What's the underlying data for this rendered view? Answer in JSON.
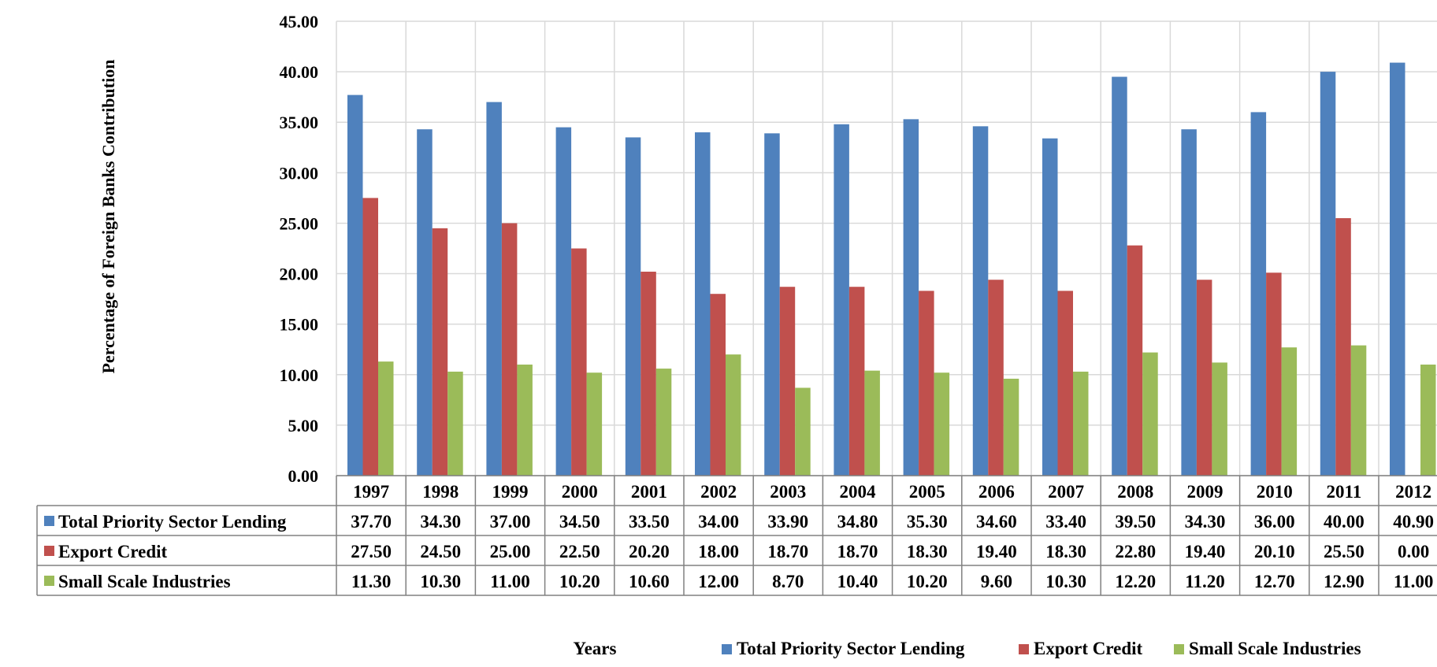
{
  "chart_data": {
    "type": "bar",
    "title": "",
    "ylabel": "Percentage of Foreign Banks Contribution",
    "xlabel": "Years",
    "ylim": [
      0,
      45
    ],
    "yticks": [
      "0.00",
      "5.00",
      "10.00",
      "15.00",
      "20.00",
      "25.00",
      "30.00",
      "35.00",
      "40.00",
      "45.00"
    ],
    "grid": true,
    "legend": "bottom",
    "categories": [
      "1997",
      "1998",
      "1999",
      "2000",
      "2001",
      "2002",
      "2003",
      "2004",
      "2005",
      "2006",
      "2007",
      "2008",
      "2009",
      "2010",
      "2011",
      "2012"
    ],
    "series": [
      {
        "name": "Total Priority Sector Lending",
        "color": "#4F81BD",
        "values": [
          37.7,
          34.3,
          37.0,
          34.5,
          33.5,
          34.0,
          33.9,
          34.8,
          35.3,
          34.6,
          33.4,
          39.5,
          34.3,
          36.0,
          40.0,
          40.9
        ],
        "labels": [
          "37.70",
          "34.30",
          "37.00",
          "34.50",
          "33.50",
          "34.00",
          "33.90",
          "34.80",
          "35.30",
          "34.60",
          "33.40",
          "39.50",
          "34.30",
          "36.00",
          "40.00",
          "40.90"
        ]
      },
      {
        "name": "Export Credit",
        "color": "#C0504D",
        "values": [
          27.5,
          24.5,
          25.0,
          22.5,
          20.2,
          18.0,
          18.7,
          18.7,
          18.3,
          19.4,
          18.3,
          22.8,
          19.4,
          20.1,
          25.5,
          0.0
        ],
        "labels": [
          "27.50",
          "24.50",
          "25.00",
          "22.50",
          "20.20",
          "18.00",
          "18.70",
          "18.70",
          "18.30",
          "19.40",
          "18.30",
          "22.80",
          "19.40",
          "20.10",
          "25.50",
          "0.00"
        ]
      },
      {
        "name": "Small Scale Industries",
        "color": "#9BBB59",
        "values": [
          11.3,
          10.3,
          11.0,
          10.2,
          10.6,
          12.0,
          8.7,
          10.4,
          10.2,
          9.6,
          10.3,
          12.2,
          11.2,
          12.7,
          12.9,
          11.0
        ],
        "labels": [
          "11.30",
          "10.30",
          "11.00",
          "10.20",
          "10.60",
          "12.00",
          "8.70",
          "10.40",
          "10.20",
          "9.60",
          "10.30",
          "12.20",
          "11.20",
          "12.70",
          "12.90",
          "11.00"
        ]
      }
    ]
  }
}
